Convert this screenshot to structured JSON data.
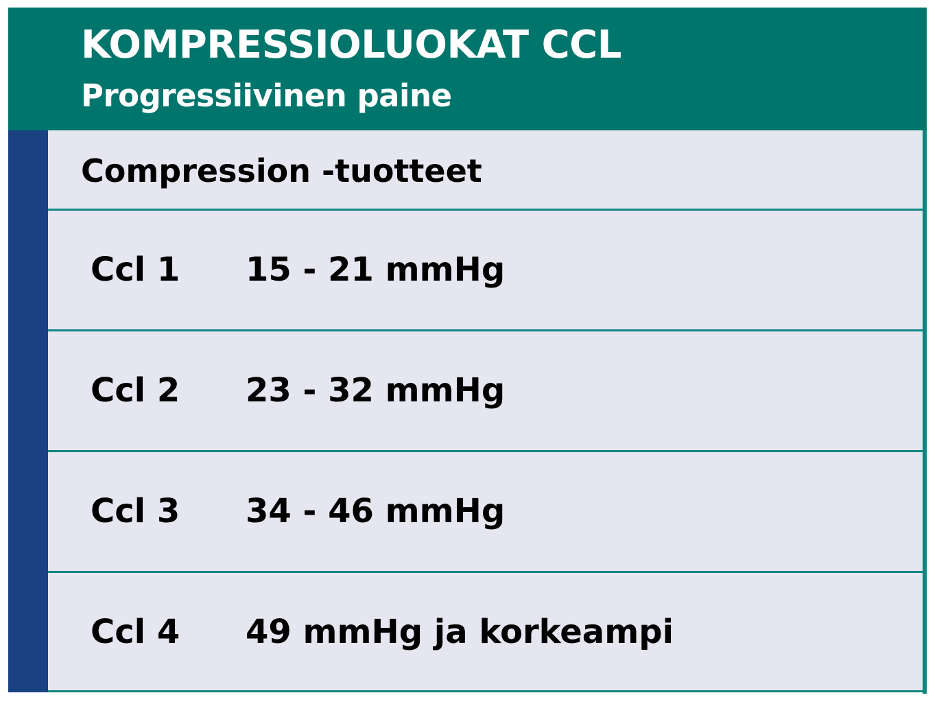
{
  "header": {
    "title": "KOMPRESSIOLUOKAT CCL",
    "subtitle": "Progressiivinen paine"
  },
  "section_label": "Compression -tuotteet",
  "rows": [
    {
      "class": "Ccl 1",
      "pressure": "15 - 21 mmHg"
    },
    {
      "class": "Ccl 2",
      "pressure": "23 - 32 mmHg"
    },
    {
      "class": "Ccl 3",
      "pressure": "34 - 46 mmHg"
    },
    {
      "class": "Ccl 4",
      "pressure": "49 mmHg ja korkeampi"
    }
  ],
  "colors": {
    "header": "#00756C",
    "sidebar": "#1A4283",
    "body": "#E6E6F0",
    "divider": "#0F8580"
  }
}
